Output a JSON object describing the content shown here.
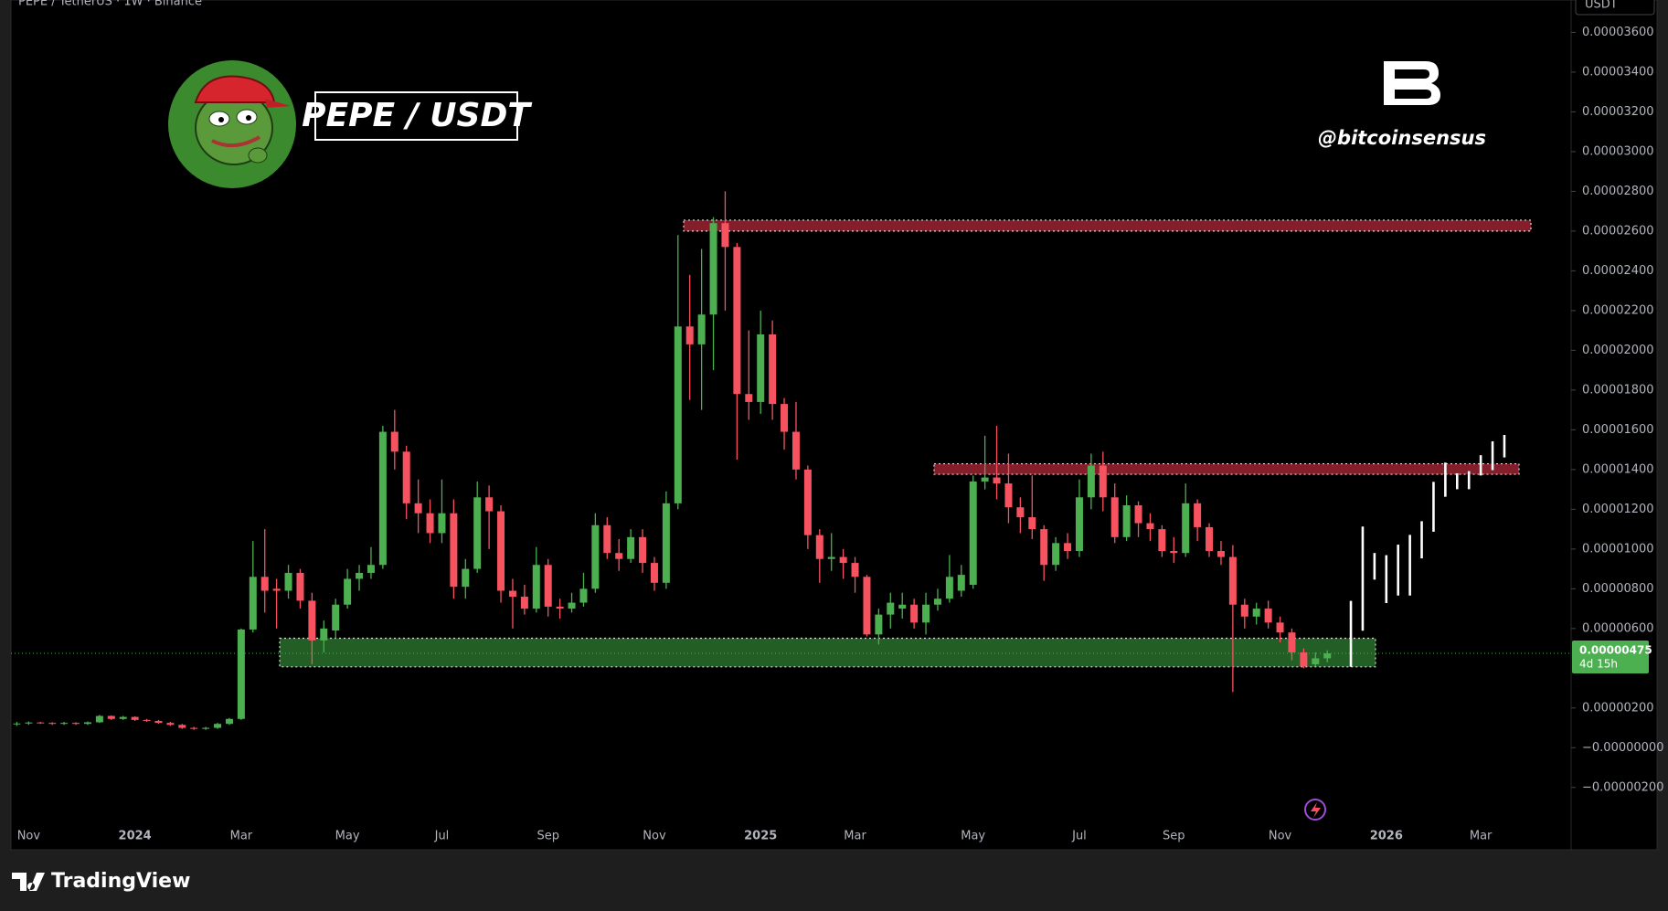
{
  "brand": "TradingView",
  "chart_data": {
    "type": "candlestick",
    "header": "PEPE / TetherUS · 1W · Binance",
    "currency": "USDT",
    "title": "PEPE / USDT",
    "handle": "@bitcoinsensus",
    "categories": [
      null,
      "Nov",
      null,
      null,
      null,
      null,
      null,
      null,
      null,
      null,
      "2024",
      null,
      null,
      null,
      null,
      null,
      null,
      null,
      null,
      "Mar",
      null,
      null,
      null,
      null,
      null,
      null,
      null,
      null,
      "May",
      null,
      null,
      null,
      null,
      null,
      null,
      null,
      "Jul",
      null,
      null,
      null,
      null,
      null,
      null,
      null,
      null,
      "Sep",
      null,
      null,
      null,
      null,
      null,
      null,
      null,
      null,
      "Nov",
      null,
      null,
      null,
      null,
      null,
      null,
      null,
      null,
      "2025",
      null,
      null,
      null,
      null,
      null,
      null,
      null,
      "Mar",
      null,
      null,
      null,
      null,
      null,
      null,
      null,
      null,
      null,
      "May",
      null,
      null,
      null,
      null,
      null,
      null,
      null,
      null,
      "Jul",
      null,
      null,
      null,
      null,
      null,
      null,
      null,
      "Sep",
      null,
      null,
      null,
      null,
      null,
      null,
      null,
      null,
      "Nov",
      null,
      null,
      null,
      null,
      null,
      null,
      null,
      null,
      "2026",
      null,
      null,
      null,
      null,
      null,
      null,
      null,
      "Mar",
      null,
      null,
      null,
      null,
      null,
      null,
      null
    ],
    "open": [
      1.18e-06,
      1.22e-06,
      1.27e-06,
      1.25e-06,
      1.2e-06,
      1.25e-06,
      1.2e-06,
      1.28e-06,
      1.6e-06,
      1.45e-06,
      1.55e-06,
      1.4e-06,
      1.35e-06,
      1.25e-06,
      1.15e-06,
      1e-06,
      9.5e-07,
      1e-06,
      1.2e-06,
      1.45e-06,
      5.95e-06,
      8.6e-06,
      8e-06,
      7.9e-06,
      8.8e-06,
      7.4e-06,
      5.4e-06,
      5.9e-06,
      7.2e-06,
      8.5e-06,
      8.8e-06,
      9.2e-06,
      1.59e-05,
      1.49e-05,
      1.23e-05,
      1.18e-05,
      1.08e-05,
      1.18e-05,
      8.1e-06,
      9e-06,
      1.26e-05,
      1.19e-05,
      7.9e-06,
      7.6e-06,
      7e-06,
      9.2e-06,
      7.1e-06,
      7e-06,
      7.3e-06,
      8e-06,
      1.12e-05,
      9.8e-06,
      9.5e-06,
      1.06e-05,
      9.3e-06,
      8.3e-06,
      1.23e-05,
      2.12e-05,
      2.03e-05,
      2.18e-05,
      2.64e-05,
      2.52e-05,
      1.78e-05,
      1.74e-05,
      2.08e-05,
      1.73e-05,
      1.59e-05,
      1.4e-05,
      1.07e-05,
      9.5e-06,
      9.6e-06,
      9.3e-06,
      8.6e-06,
      5.7e-06,
      6.7e-06,
      7e-06,
      7.2e-06,
      6.3e-06,
      7.2e-06,
      7.5e-06,
      7.9e-06,
      8.2e-06,
      1.34e-05,
      1.36e-05,
      1.33e-05,
      1.21e-05,
      1.16e-05,
      1.1e-05,
      9.2e-06,
      1.03e-05,
      9.9e-06,
      1.26e-05,
      1.42e-05,
      1.26e-05,
      1.06e-05,
      1.22e-05,
      1.13e-05,
      1.1e-05,
      9.9e-06,
      9.8e-06,
      1.23e-05,
      1.11e-05,
      9.9e-06,
      9.6e-06,
      7.2e-06,
      6.6e-06,
      7e-06,
      6.3e-06,
      5.8e-06,
      4.8e-06,
      4.2e-06,
      4.5e-06,
      null,
      null,
      null,
      null,
      null,
      null,
      null,
      null,
      null,
      null,
      null,
      null,
      null,
      null,
      null,
      null,
      null,
      null,
      null,
      null
    ],
    "high": [
      1.3e-06,
      1.32e-06,
      1.3e-06,
      1.28e-06,
      1.3e-06,
      1.28e-06,
      1.32e-06,
      1.65e-06,
      1.62e-06,
      1.6e-06,
      1.58e-06,
      1.45e-06,
      1.4e-06,
      1.3e-06,
      1.2e-06,
      1.05e-06,
      1.05e-06,
      1.25e-06,
      1.5e-06,
      6e-06,
      1.04e-05,
      1.1e-05,
      8.5e-06,
      9.2e-06,
      9e-06,
      7.8e-06,
      6.4e-06,
      7.5e-06,
      9e-06,
      9.2e-06,
      1.01e-05,
      1.62e-05,
      1.7e-05,
      1.52e-05,
      1.35e-05,
      1.25e-05,
      1.35e-05,
      1.25e-05,
      9.5e-06,
      1.34e-05,
      1.32e-05,
      1.22e-05,
      8.5e-06,
      8.2e-06,
      1.01e-05,
      9.5e-06,
      7.5e-06,
      7.8e-06,
      8.8e-06,
      1.18e-05,
      1.16e-05,
      1.05e-05,
      1.1e-05,
      1.1e-05,
      9.6e-06,
      1.29e-05,
      2.58e-05,
      2.38e-05,
      2.51e-05,
      2.67e-05,
      2.8e-05,
      2.54e-05,
      2.1e-05,
      2.2e-05,
      2.15e-05,
      1.76e-05,
      1.74e-05,
      1.42e-05,
      1.1e-05,
      1.08e-05,
      1e-05,
      9.6e-06,
      8.7e-06,
      7e-06,
      7.8e-06,
      7.8e-06,
      7.5e-06,
      7.8e-06,
      8e-06,
      9.7e-06,
      9.2e-06,
      1.37e-05,
      1.57e-05,
      1.62e-05,
      1.48e-05,
      1.26e-05,
      1.37e-05,
      1.12e-05,
      1.06e-05,
      1.08e-05,
      1.35e-05,
      1.48e-05,
      1.49e-05,
      1.33e-05,
      1.27e-05,
      1.24e-05,
      1.18e-05,
      1.12e-05,
      1.06e-05,
      1.33e-05,
      1.25e-05,
      1.13e-05,
      1.04e-05,
      1.02e-05,
      7.5e-06,
      7.3e-06,
      7.4e-06,
      6.6e-06,
      6e-06,
      5e-06,
      4.8e-06,
      4.9e-06,
      null,
      null,
      null,
      null,
      null,
      null,
      null,
      null,
      null,
      null,
      null,
      null,
      null,
      null,
      null,
      null,
      null,
      null,
      null,
      null
    ],
    "low": [
      1.1e-06,
      1.15e-06,
      1.2e-06,
      1.15e-06,
      1.15e-06,
      1.15e-06,
      1.15e-06,
      1.25e-06,
      1.4e-06,
      1.4e-06,
      1.35e-06,
      1.3e-06,
      1.2e-06,
      1.1e-06,
      9.5e-07,
      9e-07,
      9e-07,
      9.5e-07,
      1.15e-06,
      1.4e-06,
      5.8e-06,
      6.8e-06,
      6e-06,
      7.5e-06,
      7e-06,
      4.2e-06,
      4.8e-06,
      5.5e-06,
      7e-06,
      7.9e-06,
      8.5e-06,
      9e-06,
      1.4e-05,
      1.15e-05,
      1.08e-05,
      1.03e-05,
      1.03e-05,
      7.5e-06,
      7.5e-06,
      8.8e-06,
      1e-05,
      7.3e-06,
      6e-06,
      6.7e-06,
      6.8e-06,
      6.6e-06,
      6.5e-06,
      6.8e-06,
      7.1e-06,
      7.8e-06,
      9.5e-06,
      8.9e-06,
      9.3e-06,
      8.8e-06,
      7.9e-06,
      8e-06,
      1.2e-05,
      1.75e-05,
      1.7e-05,
      1.9e-05,
      2.2e-05,
      1.45e-05,
      1.65e-05,
      1.68e-05,
      1.65e-05,
      1.5e-05,
      1.35e-05,
      1e-05,
      8.3e-06,
      8.9e-06,
      8.5e-06,
      7.8e-06,
      5.6e-06,
      5.2e-06,
      6e-06,
      6.5e-06,
      6e-06,
      5.7e-06,
      6.9e-06,
      7.3e-06,
      7.6e-06,
      8e-06,
      1.3e-05,
      1.25e-05,
      1.13e-05,
      1.08e-05,
      1.05e-05,
      8.4e-06,
      8.9e-06,
      9.5e-06,
      9.6e-06,
      1.2e-05,
      1.19e-05,
      1.03e-05,
      1.04e-05,
      1.06e-05,
      1.04e-05,
      9.6e-06,
      9.3e-06,
      9.6e-06,
      1.04e-05,
      9.6e-06,
      9.2e-06,
      2.8e-06,
      6e-06,
      6.2e-06,
      6e-06,
      5.3e-06,
      4.4e-06,
      4e-06,
      4.1e-06,
      4.3e-06,
      null,
      null,
      null,
      null,
      null,
      null,
      null,
      null,
      null,
      null,
      null,
      null,
      null,
      null,
      null,
      null,
      null,
      null,
      null,
      null
    ],
    "close": [
      1.22e-06,
      1.27e-06,
      1.25e-06,
      1.2e-06,
      1.25e-06,
      1.2e-06,
      1.28e-06,
      1.6e-06,
      1.45e-06,
      1.55e-06,
      1.4e-06,
      1.35e-06,
      1.25e-06,
      1.15e-06,
      1e-06,
      9.5e-07,
      1e-06,
      1.2e-06,
      1.45e-06,
      5.95e-06,
      8.6e-06,
      7.9e-06,
      7.9e-06,
      8.8e-06,
      7.4e-06,
      5.4e-06,
      6e-06,
      7.2e-06,
      8.5e-06,
      8.8e-06,
      9.2e-06,
      1.59e-05,
      1.49e-05,
      1.23e-05,
      1.18e-05,
      1.08e-05,
      1.18e-05,
      8.1e-06,
      9e-06,
      1.26e-05,
      1.19e-05,
      7.9e-06,
      7.6e-06,
      7e-06,
      9.2e-06,
      7.1e-06,
      7e-06,
      7.3e-06,
      8e-06,
      1.12e-05,
      9.8e-06,
      9.5e-06,
      1.06e-05,
      9.3e-06,
      8.3e-06,
      1.23e-05,
      2.12e-05,
      2.03e-05,
      2.18e-05,
      2.64e-05,
      2.52e-05,
      1.78e-05,
      1.74e-05,
      2.08e-05,
      1.73e-05,
      1.59e-05,
      1.4e-05,
      1.07e-05,
      9.5e-06,
      9.6e-06,
      9.3e-06,
      8.6e-06,
      5.7e-06,
      6.7e-06,
      7.3e-06,
      7.2e-06,
      6.3e-06,
      7.2e-06,
      7.5e-06,
      8.6e-06,
      8.7e-06,
      1.34e-05,
      1.36e-05,
      1.33e-05,
      1.21e-05,
      1.16e-05,
      1.1e-05,
      9.2e-06,
      1.03e-05,
      9.9e-06,
      1.26e-05,
      1.42e-05,
      1.26e-05,
      1.06e-05,
      1.22e-05,
      1.13e-05,
      1.1e-05,
      9.9e-06,
      9.8e-06,
      1.23e-05,
      1.11e-05,
      9.9e-06,
      9.6e-06,
      7.2e-06,
      6.6e-06,
      7e-06,
      6.3e-06,
      5.8e-06,
      4.8e-06,
      4.1e-06,
      4.5e-06,
      4.75e-06,
      null,
      null,
      null,
      null,
      null,
      null,
      null,
      null,
      null,
      null,
      null,
      null,
      null,
      null,
      null,
      null,
      null,
      null,
      null,
      null
    ],
    "up_color": "#4caf50",
    "down_color": "#f7525f",
    "projection": {
      "color": "#ffffff",
      "low": [
        null,
        null,
        null,
        null,
        null,
        null,
        null,
        null,
        null,
        null,
        null,
        null,
        null,
        null,
        null,
        null,
        null,
        null,
        null,
        null,
        null,
        null,
        null,
        null,
        null,
        null,
        null,
        null,
        null,
        null,
        null,
        null,
        null,
        null,
        null,
        null,
        null,
        null,
        null,
        null,
        null,
        null,
        null,
        null,
        null,
        null,
        null,
        null,
        null,
        null,
        null,
        null,
        null,
        null,
        null,
        null,
        null,
        null,
        null,
        null,
        null,
        null,
        null,
        null,
        null,
        null,
        null,
        null,
        null,
        null,
        null,
        null,
        null,
        null,
        null,
        null,
        null,
        null,
        null,
        null,
        null,
        null,
        null,
        null,
        null,
        null,
        null,
        null,
        null,
        null,
        null,
        null,
        null,
        null,
        null,
        null,
        null,
        null,
        null,
        null,
        null,
        null,
        null,
        null,
        null,
        null,
        null,
        null,
        null,
        null,
        null,
        null,
        null,
        4.07e-06,
        5.89e-06,
        8.46e-06,
        7.28e-06,
        7.66e-06,
        7.66e-06,
        9.53e-06,
        1.087e-05,
        1.263e-05,
        1.301e-05,
        1.301e-05,
        1.37e-05,
        1.397e-05,
        1.461e-05,
        null,
        null,
        null,
        null,
        null
      ],
      "high": [
        null,
        null,
        null,
        null,
        null,
        null,
        null,
        null,
        null,
        null,
        null,
        null,
        null,
        null,
        null,
        null,
        null,
        null,
        null,
        null,
        null,
        null,
        null,
        null,
        null,
        null,
        null,
        null,
        null,
        null,
        null,
        null,
        null,
        null,
        null,
        null,
        null,
        null,
        null,
        null,
        null,
        null,
        null,
        null,
        null,
        null,
        null,
        null,
        null,
        null,
        null,
        null,
        null,
        null,
        null,
        null,
        null,
        null,
        null,
        null,
        null,
        null,
        null,
        null,
        null,
        null,
        null,
        null,
        null,
        null,
        null,
        null,
        null,
        null,
        null,
        null,
        null,
        null,
        null,
        null,
        null,
        null,
        null,
        null,
        null,
        null,
        null,
        null,
        null,
        null,
        null,
        null,
        null,
        null,
        null,
        null,
        null,
        null,
        null,
        null,
        null,
        null,
        null,
        null,
        null,
        null,
        null,
        null,
        null,
        null,
        null,
        null,
        null,
        7.39e-06,
        1.113e-05,
        9.8e-06,
        9.69e-06,
        1.022e-05,
        1.071e-05,
        1.14e-05,
        1.338e-05,
        1.435e-05,
        1.381e-05,
        1.392e-05,
        1.472e-05,
        1.542e-05,
        1.574e-05,
        null,
        null,
        null,
        null,
        null
      ]
    },
    "zones": [
      {
        "low": 2.6e-05,
        "high": 2.655e-05,
        "color": "#b2283a"
      },
      {
        "low": 1.376e-05,
        "high": 1.429e-05,
        "color": "#b2283a"
      },
      {
        "low": 4.07e-06,
        "high": 5.51e-06,
        "color": "#2e7d32"
      }
    ],
    "last_price": {
      "value": 4.75e-06,
      "label": "0.00000475",
      "countdown": "4d 15h",
      "color": "#4caf50"
    },
    "ylim": [
      -5.09e-06,
      3.763e-05
    ],
    "yticks": [
      {
        "value": 3.6e-05,
        "label": "0.00003600"
      },
      {
        "value": 3.4e-05,
        "label": "0.00003400"
      },
      {
        "value": 3.2e-05,
        "label": "0.00003200"
      },
      {
        "value": 3e-05,
        "label": "0.00003000"
      },
      {
        "value": 2.8e-05,
        "label": "0.00002800"
      },
      {
        "value": 2.6e-05,
        "label": "0.00002600"
      },
      {
        "value": 2.4e-05,
        "label": "0.00002400"
      },
      {
        "value": 2.2e-05,
        "label": "0.00002200"
      },
      {
        "value": 2e-05,
        "label": "0.00002000"
      },
      {
        "value": 1.8e-05,
        "label": "0.00001800"
      },
      {
        "value": 1.6e-05,
        "label": "0.00001600"
      },
      {
        "value": 1.4e-05,
        "label": "0.00001400"
      },
      {
        "value": 1.2e-05,
        "label": "0.00001200"
      },
      {
        "value": 1e-05,
        "label": "0.00001000"
      },
      {
        "value": 8e-06,
        "label": "0.00000800"
      },
      {
        "value": 6e-06,
        "label": "0.00000600"
      },
      {
        "value": 2e-06,
        "label": "0.00000200"
      },
      {
        "value": 0,
        "label": "−0.00000000"
      },
      {
        "value": -2e-06,
        "label": "−0.00000200"
      }
    ]
  }
}
